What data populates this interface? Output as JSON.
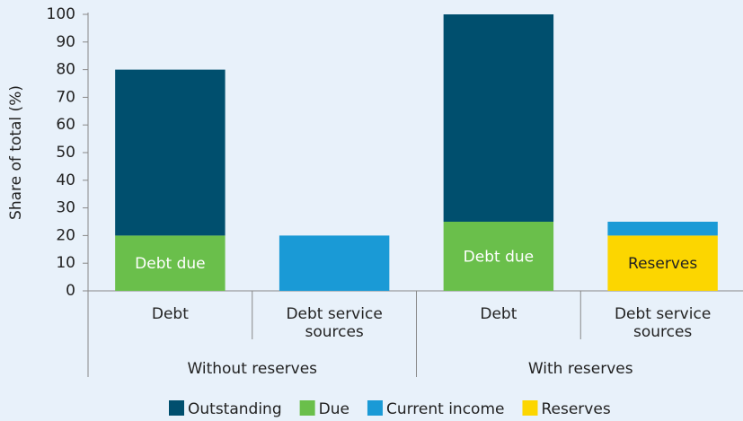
{
  "chart_data": {
    "type": "stacked_bar",
    "y_label": "Share of total (%)",
    "categories": [
      "Debt",
      "Debt service sources",
      "Debt",
      "Debt service sources"
    ],
    "groups": [
      "Without reserves",
      "With reserves"
    ],
    "series": [
      {
        "name": "Outstanding",
        "color": "#004f6e",
        "values": [
          60,
          null,
          75,
          null
        ],
        "segment_labels": [
          null,
          null,
          null,
          null
        ]
      },
      {
        "name": "Due",
        "color": "#6abf4b",
        "values": [
          20,
          null,
          25,
          null
        ],
        "segment_labels": [
          "Debt due",
          null,
          "Debt due",
          null
        ]
      },
      {
        "name": "Current income",
        "color": "#1a9ad6",
        "values": [
          null,
          20,
          null,
          5
        ],
        "segment_labels": [
          null,
          null,
          null,
          null
        ]
      },
      {
        "name": "Reserves",
        "color": "#fcd600",
        "values": [
          null,
          null,
          null,
          20
        ],
        "segment_labels": [
          null,
          null,
          null,
          "Reserves"
        ]
      }
    ],
    "ylim": [
      0,
      100
    ],
    "yticks": [
      0,
      10,
      20,
      30,
      40,
      50,
      60,
      70,
      80,
      90,
      100
    ],
    "legend": "bottom"
  }
}
